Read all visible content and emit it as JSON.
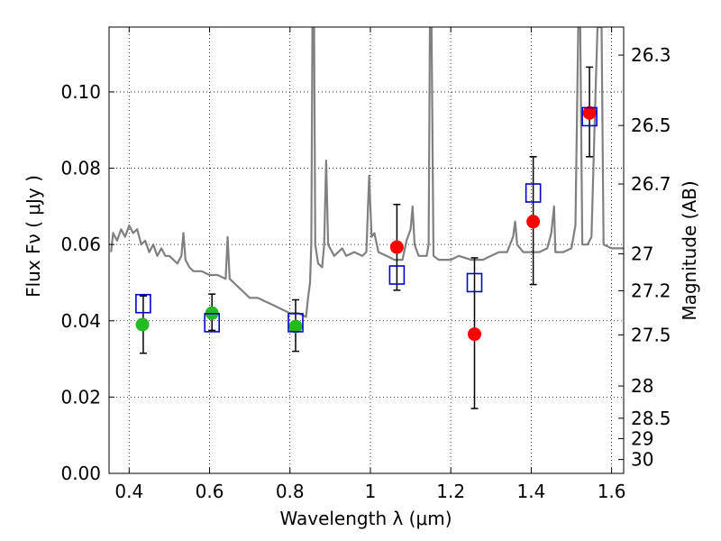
{
  "chart_data": {
    "type": "scatter",
    "xlabel": "Wavelength  λ (μm)",
    "ylabel": "Flux  Fν  ( μJy )",
    "ylabel_right": "Magnitude (AB)",
    "xlim": [
      0.35,
      1.63
    ],
    "ylim": [
      0.0,
      0.117
    ],
    "grid": true,
    "x_ticks": [
      0.4,
      0.6,
      0.8,
      1.0,
      1.2,
      1.4,
      1.6
    ],
    "x_tick_labels": [
      "0.4",
      "0.6",
      "0.8",
      "1",
      "1.2",
      "1.4",
      "1.6"
    ],
    "y_ticks": [
      0.0,
      0.02,
      0.04,
      0.06,
      0.08,
      0.1
    ],
    "y_tick_labels": [
      "0.00",
      "0.02",
      "0.04",
      "0.06",
      "0.08",
      "0.10"
    ],
    "right_ticks": [
      {
        "label": "26.3",
        "value": 26.3
      },
      {
        "label": "26.5",
        "value": 26.5
      },
      {
        "label": "26.7",
        "value": 26.7
      },
      {
        "label": "27",
        "value": 27
      },
      {
        "label": "27.2",
        "value": 27.2
      },
      {
        "label": "27.5",
        "value": 27.5
      },
      {
        "label": "28",
        "value": 28
      },
      {
        "label": "28.5",
        "value": 28.5
      },
      {
        "label": "29",
        "value": 29
      },
      {
        "label": "30",
        "value": 30
      }
    ],
    "series": [
      {
        "marker": "line",
        "color": "#808080",
        "points": [
          [
            0.355,
            0.058
          ],
          [
            0.36,
            0.063
          ],
          [
            0.37,
            0.061
          ],
          [
            0.38,
            0.064
          ],
          [
            0.39,
            0.062
          ],
          [
            0.4,
            0.065
          ],
          [
            0.41,
            0.063
          ],
          [
            0.42,
            0.064
          ],
          [
            0.43,
            0.06
          ],
          [
            0.44,
            0.061
          ],
          [
            0.45,
            0.058
          ],
          [
            0.46,
            0.06
          ],
          [
            0.47,
            0.057
          ],
          [
            0.48,
            0.059
          ],
          [
            0.49,
            0.057
          ],
          [
            0.5,
            0.057
          ],
          [
            0.51,
            0.056
          ],
          [
            0.52,
            0.055
          ],
          [
            0.53,
            0.057
          ],
          [
            0.535,
            0.063
          ],
          [
            0.54,
            0.056
          ],
          [
            0.55,
            0.054
          ],
          [
            0.56,
            0.053
          ],
          [
            0.58,
            0.053
          ],
          [
            0.6,
            0.052
          ],
          [
            0.62,
            0.052
          ],
          [
            0.64,
            0.051
          ],
          [
            0.645,
            0.062
          ],
          [
            0.65,
            0.051
          ],
          [
            0.66,
            0.05
          ],
          [
            0.68,
            0.048
          ],
          [
            0.7,
            0.046
          ],
          [
            0.72,
            0.046
          ],
          [
            0.74,
            0.045
          ],
          [
            0.76,
            0.044
          ],
          [
            0.78,
            0.043
          ],
          [
            0.8,
            0.042
          ],
          [
            0.82,
            0.042
          ],
          [
            0.84,
            0.041
          ],
          [
            0.845,
            0.046
          ],
          [
            0.85,
            0.05
          ],
          [
            0.853,
            0.06
          ],
          [
            0.856,
            0.12
          ],
          [
            0.86,
            0.117
          ],
          [
            0.863,
            0.06
          ],
          [
            0.87,
            0.055
          ],
          [
            0.88,
            0.054
          ],
          [
            0.885,
            0.06
          ],
          [
            0.89,
            0.082
          ],
          [
            0.895,
            0.06
          ],
          [
            0.91,
            0.057
          ],
          [
            0.93,
            0.059
          ],
          [
            0.94,
            0.057
          ],
          [
            0.96,
            0.058
          ],
          [
            0.98,
            0.057
          ],
          [
            0.99,
            0.058
          ],
          [
            0.997,
            0.078
          ],
          [
            1.003,
            0.062
          ],
          [
            1.01,
            0.063
          ],
          [
            1.02,
            0.058
          ],
          [
            1.04,
            0.057
          ],
          [
            1.06,
            0.056
          ],
          [
            1.08,
            0.056
          ],
          [
            1.09,
            0.061
          ],
          [
            1.1,
            0.064
          ],
          [
            1.105,
            0.07
          ],
          [
            1.11,
            0.06
          ],
          [
            1.12,
            0.057
          ],
          [
            1.14,
            0.057
          ],
          [
            1.145,
            0.06
          ],
          [
            1.148,
            0.117
          ],
          [
            1.152,
            0.117
          ],
          [
            1.157,
            0.057
          ],
          [
            1.17,
            0.056
          ],
          [
            1.2,
            0.056
          ],
          [
            1.22,
            0.057
          ],
          [
            1.25,
            0.056
          ],
          [
            1.28,
            0.056
          ],
          [
            1.3,
            0.057
          ],
          [
            1.32,
            0.058
          ],
          [
            1.34,
            0.058
          ],
          [
            1.355,
            0.062
          ],
          [
            1.36,
            0.066
          ],
          [
            1.365,
            0.06
          ],
          [
            1.38,
            0.058
          ],
          [
            1.4,
            0.058
          ],
          [
            1.42,
            0.058
          ],
          [
            1.44,
            0.059
          ],
          [
            1.45,
            0.063
          ],
          [
            1.457,
            0.07
          ],
          [
            1.46,
            0.058
          ],
          [
            1.48,
            0.058
          ],
          [
            1.5,
            0.059
          ],
          [
            1.51,
            0.065
          ],
          [
            1.517,
            0.117
          ],
          [
            1.522,
            0.117
          ],
          [
            1.527,
            0.06
          ],
          [
            1.54,
            0.06
          ],
          [
            1.55,
            0.062
          ],
          [
            1.56,
            0.1
          ],
          [
            1.565,
            0.117
          ],
          [
            1.575,
            0.117
          ],
          [
            1.58,
            0.06
          ],
          [
            1.6,
            0.059
          ],
          [
            1.63,
            0.059
          ]
        ]
      },
      {
        "marker": "circle",
        "color": "#22bb22",
        "points": [
          {
            "x": 0.433,
            "y": 0.039
          },
          {
            "x": 0.606,
            "y": 0.042
          },
          {
            "x": 0.814,
            "y": 0.0385
          }
        ]
      },
      {
        "marker": "circle",
        "color": "#ff0000",
        "points": [
          {
            "x": 1.066,
            "y": 0.0593
          },
          {
            "x": 1.259,
            "y": 0.0365
          },
          {
            "x": 1.405,
            "y": 0.066
          },
          {
            "x": 1.545,
            "y": 0.0945
          }
        ]
      },
      {
        "marker": "square",
        "color": "#0000cc",
        "points": [
          {
            "x": 0.435,
            "y": 0.0445
          },
          {
            "x": 0.606,
            "y": 0.0395
          },
          {
            "x": 0.814,
            "y": 0.0395
          },
          {
            "x": 1.066,
            "y": 0.052
          },
          {
            "x": 1.259,
            "y": 0.05
          },
          {
            "x": 1.405,
            "y": 0.0735
          },
          {
            "x": 1.545,
            "y": 0.0935
          }
        ]
      }
    ],
    "error_bars": [
      {
        "x": 0.435,
        "low": 0.0315,
        "high": 0.0465
      },
      {
        "x": 0.606,
        "low": 0.0375,
        "high": 0.047
      },
      {
        "x": 0.814,
        "low": 0.032,
        "high": 0.0455
      },
      {
        "x": 1.066,
        "low": 0.048,
        "high": 0.0705
      },
      {
        "x": 1.259,
        "low": 0.017,
        "high": 0.0565
      },
      {
        "x": 1.405,
        "low": 0.0495,
        "high": 0.083
      },
      {
        "x": 1.545,
        "low": 0.083,
        "high": 0.1065
      }
    ]
  }
}
